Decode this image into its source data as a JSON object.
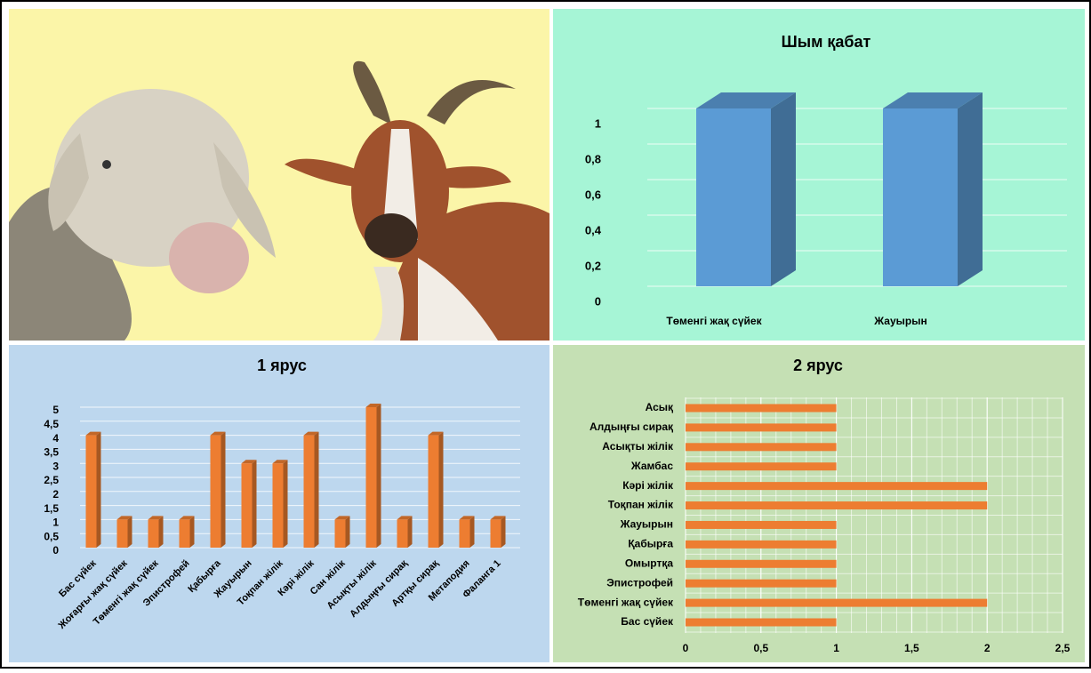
{
  "chart_data": [
    {
      "type": "bar3d",
      "title": "Шым қабат",
      "categories": [
        "Төменгі жақ сүйек",
        "Жауырын"
      ],
      "values": [
        1,
        1
      ],
      "color": "#5b9bd5",
      "ylim": [
        0,
        1
      ],
      "yticks": [
        0,
        {
          "value": 0.2,
          "label": "0,2"
        },
        {
          "value": 0.4,
          "label": "0,4"
        },
        {
          "value": 0.6,
          "label": "0,6"
        },
        {
          "value": 0.8,
          "label": "0,8"
        },
        1
      ],
      "grid": true
    },
    {
      "type": "bar3d",
      "title": "1 ярус",
      "categories": [
        "Бас сүйек",
        "Жоғарғы жақ сүйек",
        "Төменгі жақ сүйек",
        "Эпистрофей",
        "Қабырға",
        "Жауырын",
        "Тоқпан жілік",
        "Кәрі жілік",
        "Сан жілік",
        "Асықты жілік",
        "Алдыңғы сирақ",
        "Артқы сирақ",
        "Метаподия",
        "Фаланга 1"
      ],
      "values": [
        4,
        1,
        1,
        1,
        4,
        3,
        3,
        4,
        1,
        5,
        1,
        4,
        1,
        1
      ],
      "color": "#ed7d31",
      "ylim": [
        0,
        5
      ],
      "yticks": [
        0,
        {
          "value": 0.5,
          "label": "0,5"
        },
        1,
        {
          "value": 1.5,
          "label": "1,5"
        },
        2,
        {
          "value": 2.5,
          "label": "2,5"
        },
        3,
        {
          "value": 3.5,
          "label": "3,5"
        },
        4,
        {
          "value": 4.5,
          "label": "4,5"
        },
        5
      ],
      "grid": true
    },
    {
      "type": "hbar",
      "title": "2 ярус",
      "categories": [
        "Бас сүйек",
        "Төменгі жақ сүйек",
        "Эпистрофей",
        "Омыртқа",
        "Қабырға",
        "Жауырын",
        "Тоқпан жілік",
        "Кәрі жілік",
        "Жамбас",
        "Асықты жілік",
        "Алдыңғы сирақ",
        "Асық"
      ],
      "values": [
        1,
        2,
        1,
        1,
        1,
        1,
        2,
        2,
        1,
        1,
        1,
        1
      ],
      "color": "#ed7d31",
      "xlim": [
        0,
        2.5
      ],
      "xticks": [
        0,
        {
          "value": 0.5,
          "label": "0,5"
        },
        1,
        {
          "value": 1.5,
          "label": "1,5"
        },
        2,
        {
          "value": 2.5,
          "label": "2,5"
        }
      ],
      "grid": true
    }
  ]
}
